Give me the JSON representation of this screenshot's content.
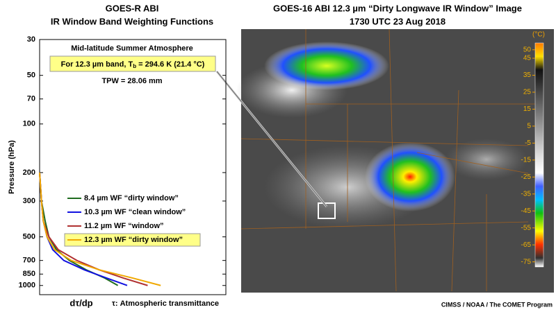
{
  "chart_data": [
    {
      "type": "line",
      "title": "GOES-R ABI",
      "subtitle": "IR Window Band Weighting Functions",
      "ylabel": "Pressure (hPa)",
      "xlabel": "dτ/dp",
      "xlabel_note": "τ: Atmospheric transmittance",
      "annotation_atmosphere": "Mid-latitude Summer Atmosphere",
      "annotation_tb": {
        "prefix": "For 12.3 µm band, T",
        "subscript": "b",
        "suffix": " = 294.6 K (21.4 °C)"
      },
      "annotation_tpw": "TPW = 28.06 mm",
      "log_y": true,
      "y_inverted": true,
      "xlim": [
        0,
        1
      ],
      "ylim": [
        30,
        1140
      ],
      "yticks": [
        30,
        50,
        70,
        100,
        200,
        300,
        500,
        700,
        850,
        1000
      ],
      "y": [
        200,
        300,
        400,
        500,
        600,
        700,
        800,
        900,
        1000
      ],
      "series": [
        {
          "name": "8.4 µm WF “dirty window”",
          "color": "#1e6b1e",
          "values": [
            0.0,
            0.01,
            0.03,
            0.05,
            0.09,
            0.16,
            0.25,
            0.35,
            0.42
          ]
        },
        {
          "name": "10.3 µm WF “clean window”",
          "color": "#1010e0",
          "values": [
            0.0,
            0.01,
            0.02,
            0.04,
            0.07,
            0.13,
            0.24,
            0.36,
            0.47
          ]
        },
        {
          "name": "11.2 µm WF “window”",
          "color": "#b03030",
          "values": [
            0.0,
            0.01,
            0.02,
            0.05,
            0.1,
            0.2,
            0.32,
            0.45,
            0.58
          ]
        },
        {
          "name": "12.3 µm WF “dirty window”",
          "color": "#f0a800",
          "values": [
            0.0,
            0.01,
            0.02,
            0.04,
            0.08,
            0.17,
            0.32,
            0.5,
            0.65
          ]
        }
      ],
      "highlight_series": 3
    },
    {
      "type": "image",
      "title": "GOES-16 ABI 12.3 µm “Dirty Longwave IR Window” Image",
      "subtitle": "1730 UTC  23 Aug 2018",
      "colorbar_label": "(°C)",
      "clim": [
        -78,
        54
      ],
      "colorbar_ticks": [
        50,
        45,
        35,
        25,
        15,
        5,
        -5,
        -15,
        -25,
        -35,
        -45,
        -55,
        -65,
        -75
      ],
      "credit": "CIMSS / NOAA / The COMET Program"
    }
  ]
}
